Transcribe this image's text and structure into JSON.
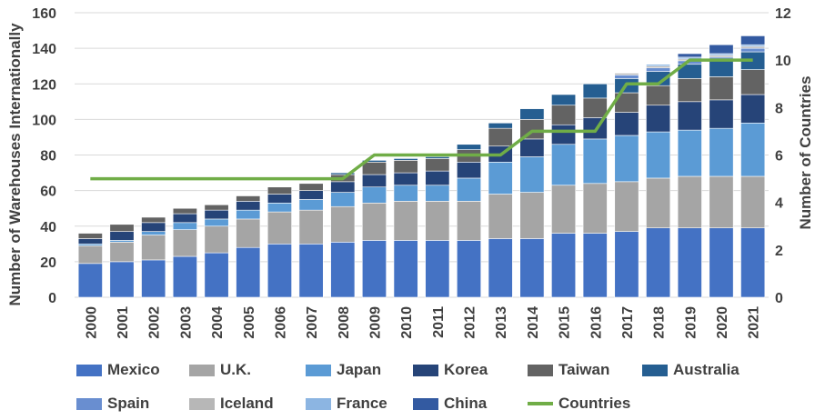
{
  "chart_data": {
    "type": "bar",
    "stacked": true,
    "categories": [
      "2000",
      "2001",
      "2002",
      "2003",
      "2004",
      "2005",
      "2006",
      "2007",
      "2008",
      "2009",
      "2010",
      "2011",
      "2012",
      "2013",
      "2014",
      "2015",
      "2016",
      "2017",
      "2018",
      "2019",
      "2020",
      "2021"
    ],
    "series": [
      {
        "name": "Mexico",
        "color": "#4472C4",
        "values": [
          19,
          20,
          21,
          23,
          25,
          28,
          30,
          30,
          31,
          32,
          32,
          32,
          32,
          33,
          33,
          36,
          36,
          37,
          39,
          39,
          39,
          39
        ]
      },
      {
        "name": "U.K.",
        "color": "#A5A5A5",
        "values": [
          10,
          11,
          14,
          15,
          15,
          16,
          18,
          19,
          20,
          21,
          22,
          22,
          22,
          25,
          26,
          27,
          28,
          28,
          28,
          29,
          29,
          29
        ]
      },
      {
        "name": "Japan",
        "color": "#5B9BD5",
        "values": [
          1,
          1,
          2,
          4,
          4,
          5,
          5,
          6,
          8,
          9,
          9,
          9,
          13,
          18,
          20,
          23,
          25,
          26,
          26,
          26,
          27,
          30
        ]
      },
      {
        "name": "Korea",
        "color": "#264478",
        "values": [
          3,
          5,
          5,
          5,
          5,
          5,
          5,
          5,
          6,
          7,
          7,
          8,
          9,
          9,
          10,
          11,
          12,
          13,
          15,
          16,
          16,
          16
        ]
      },
      {
        "name": "Taiwan",
        "color": "#636363",
        "values": [
          3,
          4,
          3,
          3,
          3,
          3,
          4,
          4,
          4,
          7,
          7,
          7,
          7,
          10,
          11,
          11,
          11,
          11,
          11,
          13,
          13,
          14
        ]
      },
      {
        "name": "Australia",
        "color": "#255E91",
        "values": [
          0,
          0,
          0,
          0,
          0,
          0,
          0,
          0,
          1,
          1,
          1,
          1,
          3,
          3,
          6,
          6,
          8,
          8,
          8,
          8,
          9,
          10
        ]
      },
      {
        "name": "Spain",
        "color": "#698ED0",
        "values": [
          0,
          0,
          0,
          0,
          0,
          0,
          0,
          0,
          0,
          0,
          0,
          0,
          0,
          0,
          0,
          0,
          0,
          2,
          2,
          2,
          2,
          2
        ]
      },
      {
        "name": "Iceland",
        "color": "#B7B7B7",
        "values": [
          0,
          0,
          0,
          0,
          0,
          0,
          0,
          0,
          0,
          0,
          0,
          0,
          0,
          0,
          0,
          0,
          0,
          1,
          1,
          1,
          1,
          1
        ]
      },
      {
        "name": "France",
        "color": "#8CB5E2",
        "values": [
          0,
          0,
          0,
          0,
          0,
          0,
          0,
          0,
          0,
          0,
          0,
          0,
          0,
          0,
          0,
          0,
          0,
          0,
          1,
          1,
          1,
          1
        ]
      },
      {
        "name": "China",
        "color": "#335AA1",
        "values": [
          0,
          0,
          0,
          0,
          0,
          0,
          0,
          0,
          0,
          0,
          0,
          0,
          0,
          0,
          0,
          0,
          0,
          0,
          0,
          2,
          5,
          5
        ]
      }
    ],
    "line_series": {
      "name": "Countries",
      "color": "#70AD47",
      "axis": "right",
      "values": [
        5,
        5,
        5,
        5,
        5,
        5,
        5,
        5,
        5,
        6,
        6,
        6,
        6,
        6,
        7,
        7,
        7,
        9,
        9,
        10,
        10,
        10
      ]
    },
    "ylim": [
      0,
      160
    ],
    "yticks": [
      0,
      20,
      40,
      60,
      80,
      100,
      120,
      140,
      160
    ],
    "y2lim": [
      0,
      12
    ],
    "y2ticks": [
      0,
      2,
      4,
      6,
      8,
      10,
      12
    ],
    "ylabel": "Number of Warehouses Internationally",
    "y2label": "Number of Countries",
    "xlabel": "",
    "title": "",
    "grid": true,
    "legend_position": "bottom"
  }
}
